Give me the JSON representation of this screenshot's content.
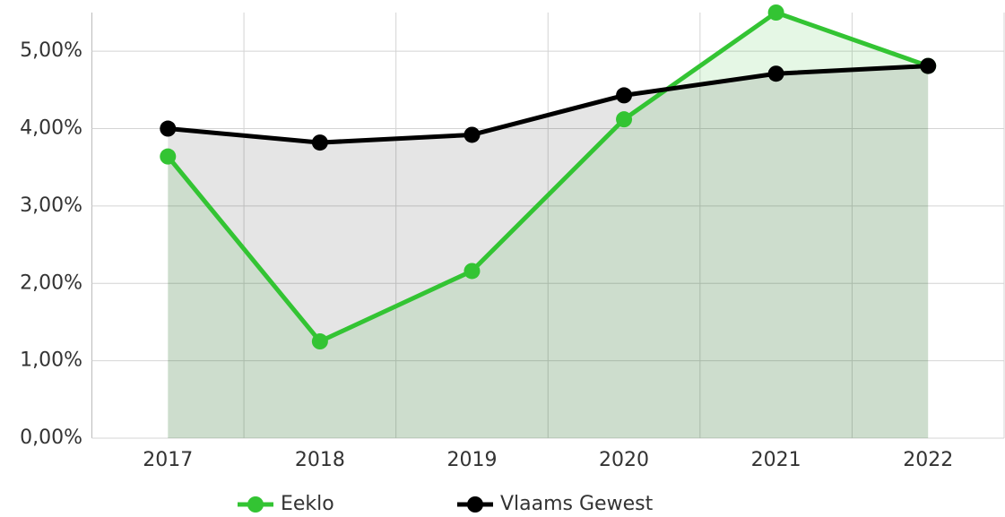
{
  "chart_data": {
    "type": "line",
    "categories": [
      "2017",
      "2018",
      "2019",
      "2020",
      "2021",
      "2022"
    ],
    "series": [
      {
        "name": "Eeklo",
        "color": "#33c433",
        "values": [
          3.64,
          1.25,
          2.16,
          4.12,
          5.5,
          4.81
        ]
      },
      {
        "name": "Vlaams Gewest",
        "color": "#000000",
        "values": [
          4.0,
          3.82,
          3.92,
          4.43,
          4.71,
          4.81
        ]
      }
    ],
    "ylim": [
      0,
      5.5
    ],
    "yticks": [
      {
        "value": 0,
        "label": "0,00%"
      },
      {
        "value": 1,
        "label": "1,00%"
      },
      {
        "value": 2,
        "label": "2,00%"
      },
      {
        "value": 3,
        "label": "3,00%"
      },
      {
        "value": 4,
        "label": "4,00%"
      },
      {
        "value": 5,
        "label": "5,00%"
      }
    ],
    "grid": true,
    "legend": "bottom"
  }
}
